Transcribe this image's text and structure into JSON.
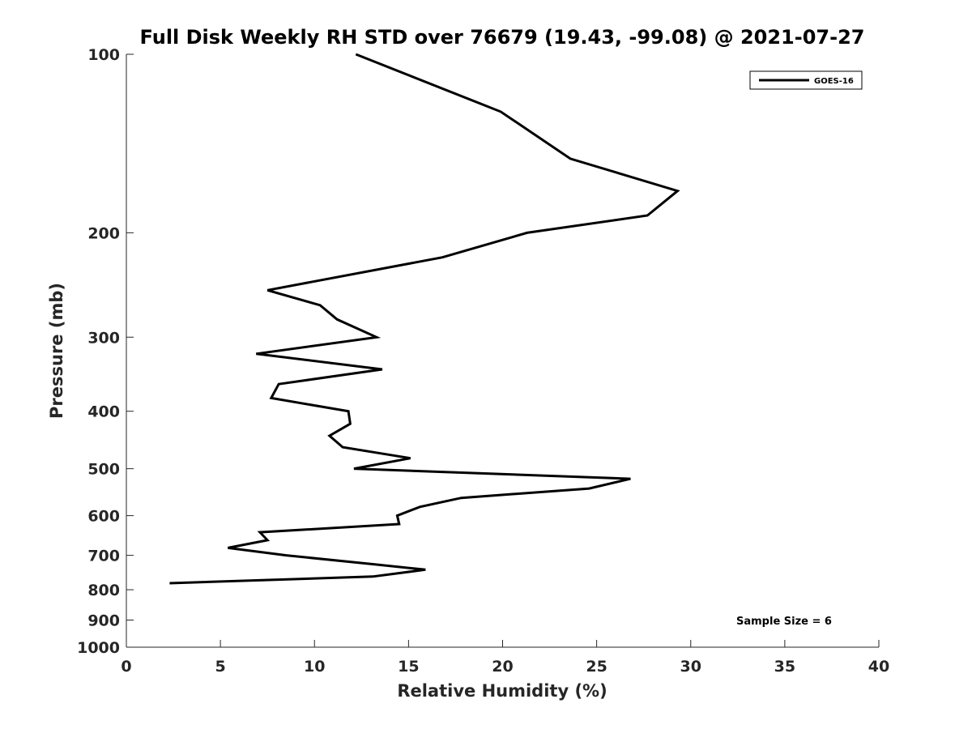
{
  "chart_data": {
    "type": "line",
    "title": "Full Disk Weekly RH STD over 76679 (19.43, -99.08) @ 2021-07-27",
    "xlabel": "Relative Humidity (%)",
    "ylabel": "Pressure (mb)",
    "xlim": [
      0,
      40
    ],
    "ylim": [
      1000,
      100
    ],
    "y_scale": "log",
    "x_ticks": [
      0,
      5,
      10,
      15,
      20,
      25,
      30,
      35,
      40
    ],
    "y_ticks": [
      100,
      200,
      300,
      400,
      500,
      600,
      700,
      800,
      900,
      1000
    ],
    "grid": false,
    "legend_position": "top-right",
    "annotation": "Sample Size = 6",
    "series": [
      {
        "name": "GOES-16",
        "color": "#000000",
        "points": [
          [
            12.2,
            100
          ],
          [
            19.9,
            125
          ],
          [
            23.6,
            150
          ],
          [
            29.3,
            170
          ],
          [
            27.7,
            187
          ],
          [
            21.3,
            200
          ],
          [
            16.8,
            220
          ],
          [
            7.5,
            250
          ],
          [
            10.3,
            265
          ],
          [
            11.2,
            280
          ],
          [
            13.3,
            300
          ],
          [
            6.9,
            320
          ],
          [
            13.6,
            340
          ],
          [
            8.1,
            360
          ],
          [
            7.7,
            380
          ],
          [
            11.8,
            400
          ],
          [
            11.9,
            420
          ],
          [
            10.8,
            440
          ],
          [
            11.5,
            460
          ],
          [
            15.1,
            480
          ],
          [
            12.1,
            500
          ],
          [
            26.8,
            520
          ],
          [
            24.6,
            540
          ],
          [
            17.8,
            560
          ],
          [
            15.6,
            580
          ],
          [
            14.4,
            600
          ],
          [
            14.5,
            620
          ],
          [
            7.1,
            640
          ],
          [
            7.5,
            660
          ],
          [
            5.4,
            680
          ],
          [
            8.5,
            700
          ],
          [
            13.2,
            725
          ],
          [
            15.9,
            740
          ],
          [
            13.1,
            760
          ],
          [
            2.3,
            780
          ]
        ]
      }
    ]
  }
}
